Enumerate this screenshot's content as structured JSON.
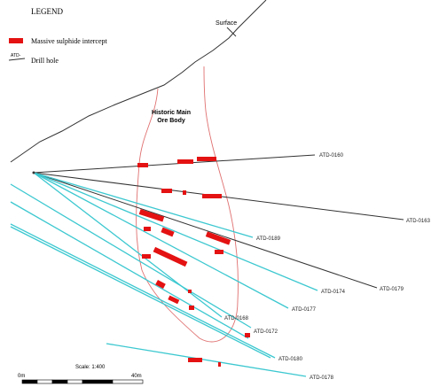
{
  "legend": {
    "title": "LEGEND",
    "intercept_label": "Massive sulphide intercept",
    "drill_prefix": "ATD-",
    "drill_label": "Drill hole"
  },
  "surface_label": "Surface",
  "ore_body_label": [
    "Historic Main",
    "Ore Body"
  ],
  "drill_holes": [
    "ATD-0160",
    "ATD-0163",
    "ATD-0189",
    "ATD-0174",
    "ATD-0179",
    "ATD-0177",
    "ATD-0168",
    "ATD-0172",
    "ATD-0180",
    "ATD-0178"
  ],
  "scale": {
    "label": "Scale: 1:400",
    "start": "0m",
    "end": "40m"
  }
}
